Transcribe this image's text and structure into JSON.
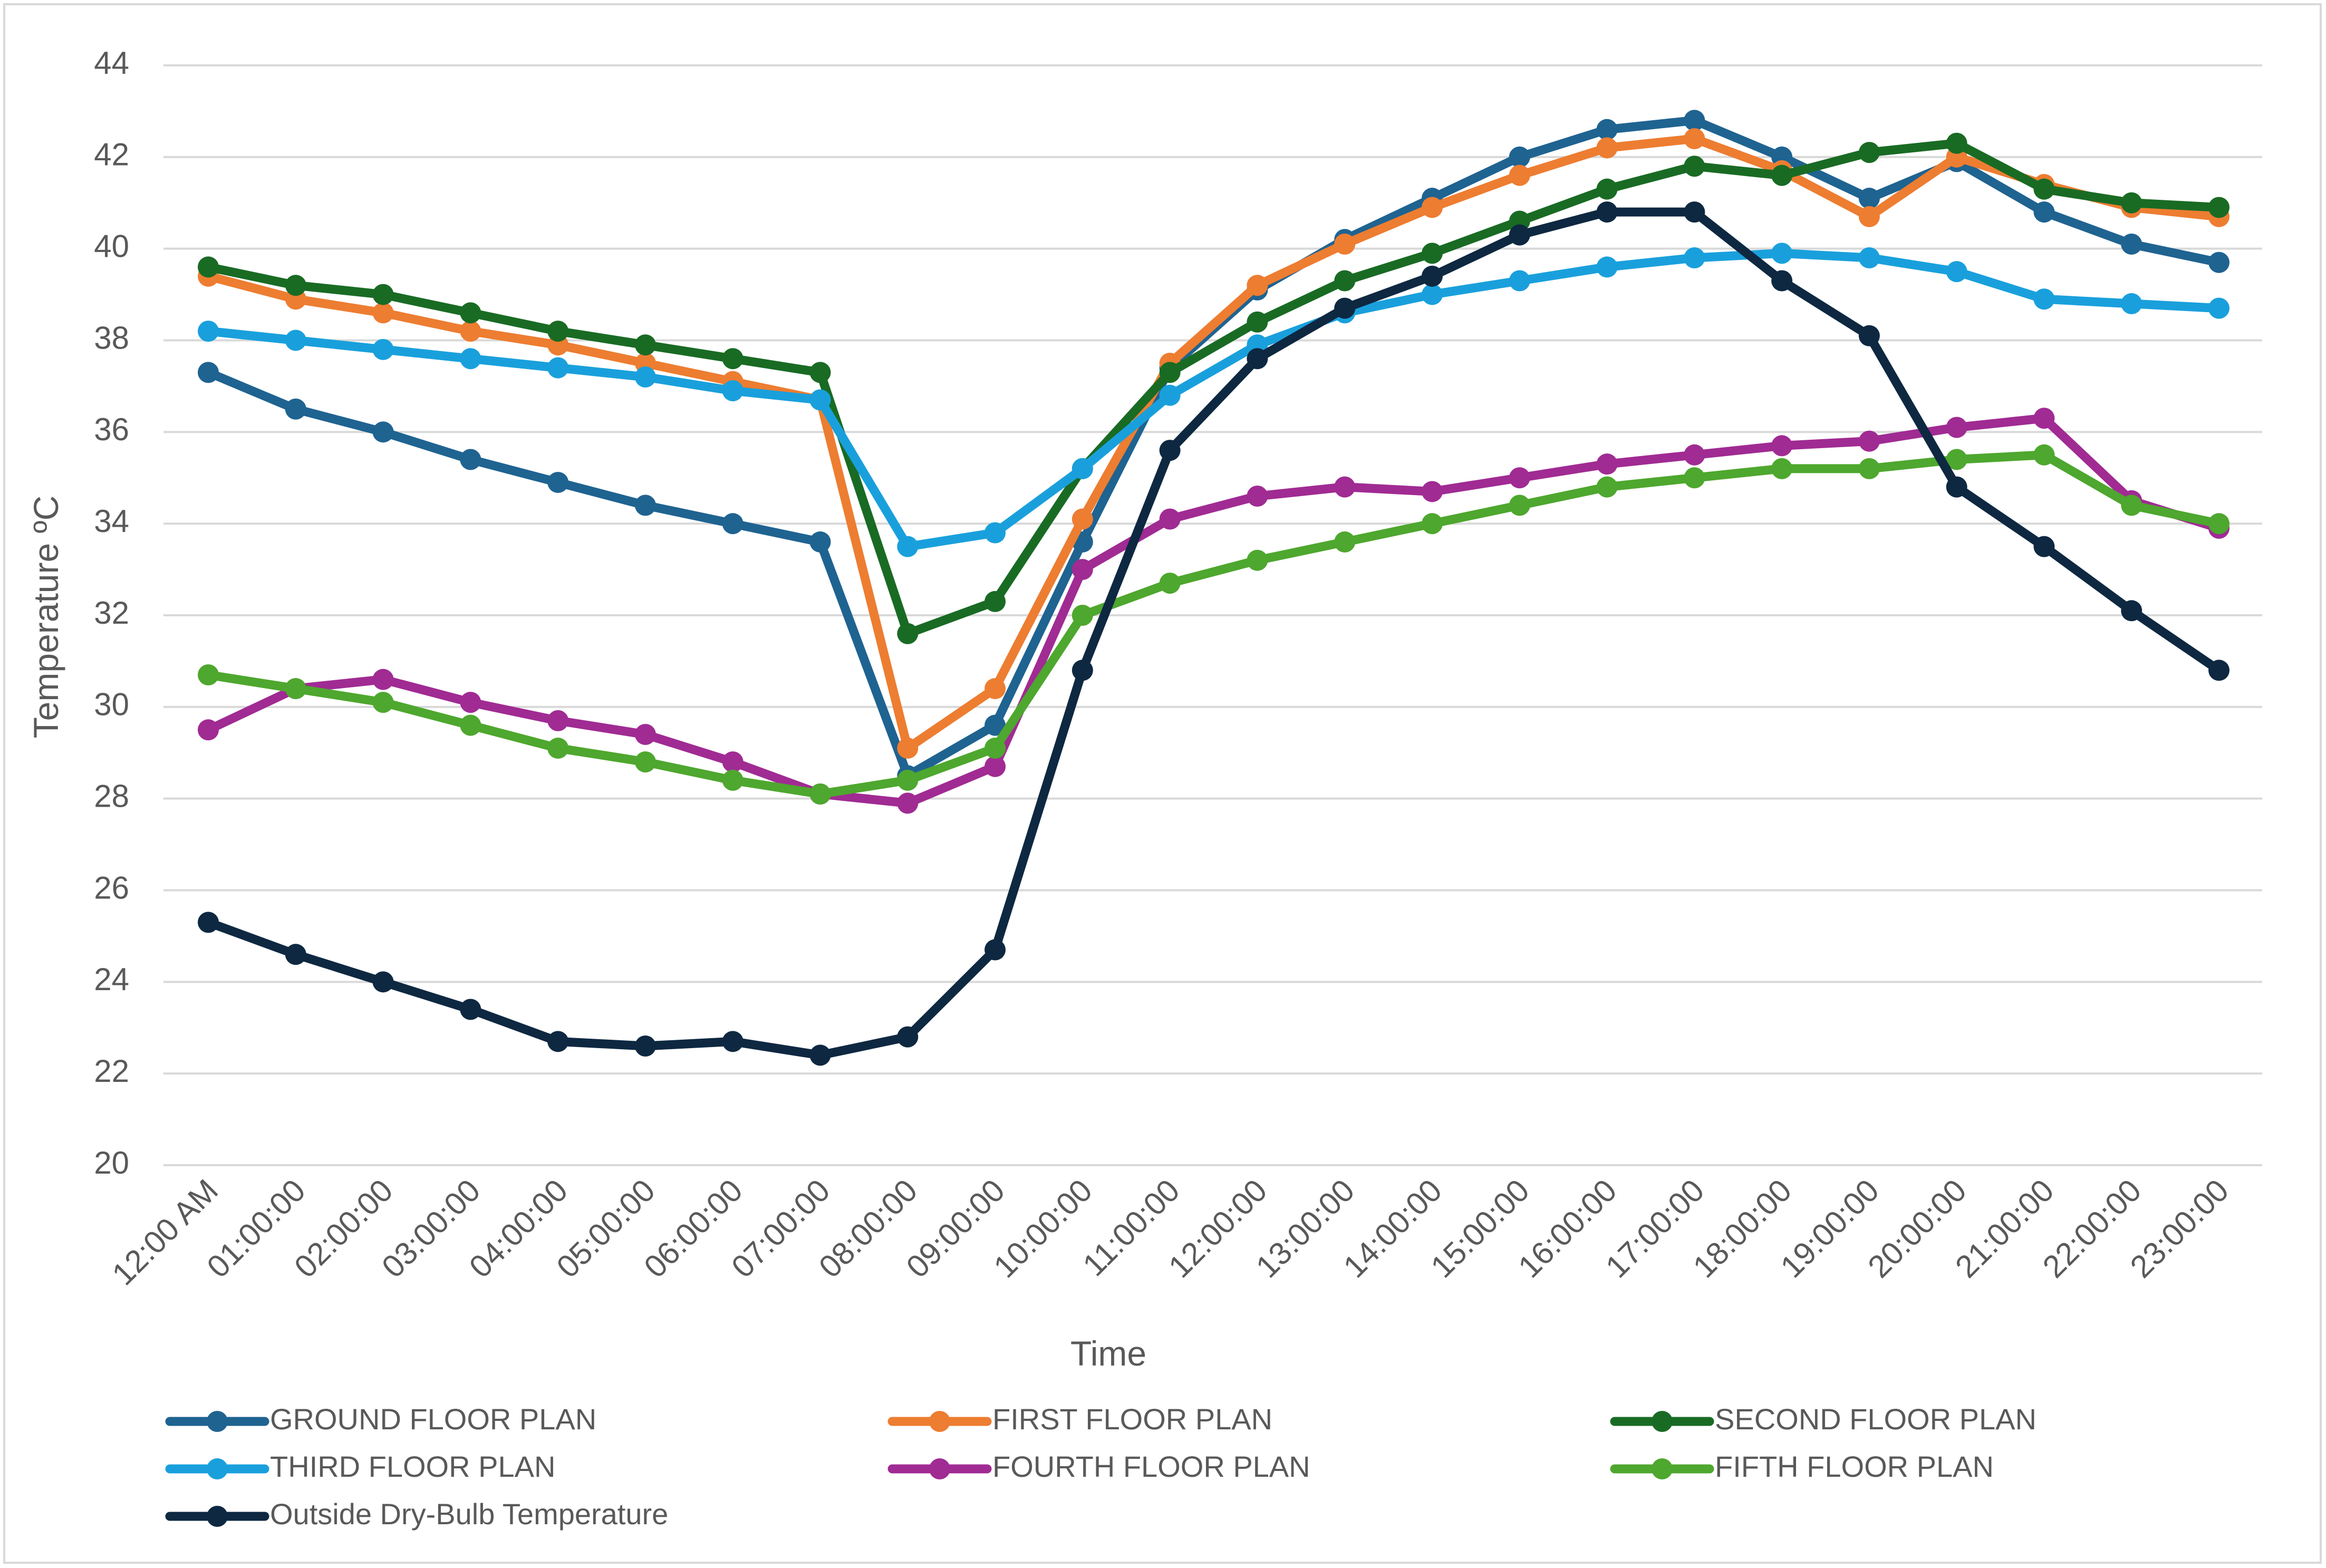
{
  "chart_data": {
    "type": "line",
    "title": "",
    "xlabel": "Time",
    "ylabel": "Temperature ºC",
    "ylim": [
      20,
      44
    ],
    "ytick_step": 2,
    "grid": true,
    "legend_position": "bottom",
    "categories": [
      "12:00 AM",
      "01:00:00",
      "02:00:00",
      "03:00:00",
      "04:00:00",
      "05:00:00",
      "06:00:00",
      "07:00:00",
      "08:00:00",
      "09:00:00",
      "10:00:00",
      "11:00:00",
      "12:00:00",
      "13:00:00",
      "14:00:00",
      "15:00:00",
      "16:00:00",
      "17:00:00",
      "18:00:00",
      "19:00:00",
      "20:00:00",
      "21:00:00",
      "22:00:00",
      "23:00:00"
    ],
    "series": [
      {
        "name": "GROUND FLOOR PLAN",
        "color": "#1f6391",
        "values": [
          37.3,
          36.5,
          36.0,
          35.4,
          34.9,
          34.4,
          34.0,
          33.6,
          28.5,
          29.6,
          33.6,
          37.4,
          39.1,
          40.2,
          41.1,
          42.0,
          42.6,
          42.8,
          42.0,
          41.1,
          41.9,
          40.8,
          40.1,
          39.7
        ]
      },
      {
        "name": "FIRST FLOOR PLAN",
        "color": "#ed7d31",
        "values": [
          39.4,
          38.9,
          38.6,
          38.2,
          37.9,
          37.5,
          37.1,
          36.7,
          29.1,
          30.4,
          34.1,
          37.5,
          39.2,
          40.1,
          40.9,
          41.6,
          42.2,
          42.4,
          41.7,
          40.7,
          42.0,
          41.4,
          40.9,
          40.7
        ]
      },
      {
        "name": "SECOND FLOOR PLAN",
        "color": "#196b24",
        "values": [
          39.6,
          39.2,
          39.0,
          38.6,
          38.2,
          37.9,
          37.6,
          37.3,
          31.6,
          32.3,
          35.2,
          37.3,
          38.4,
          39.3,
          39.9,
          40.6,
          41.3,
          41.8,
          41.6,
          42.1,
          42.3,
          41.3,
          41.0,
          40.9
        ]
      },
      {
        "name": "THIRD FLOOR PLAN",
        "color": "#19a0dc",
        "values": [
          38.2,
          38.0,
          37.8,
          37.6,
          37.4,
          37.2,
          36.9,
          36.7,
          33.5,
          33.8,
          35.2,
          36.8,
          37.9,
          38.6,
          39.0,
          39.3,
          39.6,
          39.8,
          39.9,
          39.8,
          39.5,
          38.9,
          38.8,
          38.7
        ]
      },
      {
        "name": "FOURTH FLOOR PLAN",
        "color": "#a02b93",
        "values": [
          29.5,
          30.4,
          30.6,
          30.1,
          29.7,
          29.4,
          28.8,
          28.1,
          27.9,
          28.7,
          33.0,
          34.1,
          34.6,
          34.8,
          34.7,
          35.0,
          35.3,
          35.5,
          35.7,
          35.8,
          36.1,
          36.3,
          34.5,
          33.9
        ]
      },
      {
        "name": "FIFTH FLOOR PLAN",
        "color": "#4ea72e",
        "values": [
          30.7,
          30.4,
          30.1,
          29.6,
          29.1,
          28.8,
          28.4,
          28.1,
          28.4,
          29.1,
          32.0,
          32.7,
          33.2,
          33.6,
          34.0,
          34.4,
          34.8,
          35.0,
          35.2,
          35.2,
          35.4,
          35.5,
          34.4,
          34.0
        ]
      },
      {
        "name": "Outside Dry-Bulb Temperature",
        "color": "#0e2841",
        "values": [
          25.3,
          24.6,
          24.0,
          23.4,
          22.7,
          22.6,
          22.7,
          22.4,
          22.8,
          24.7,
          30.8,
          35.6,
          37.6,
          38.7,
          39.4,
          40.3,
          40.8,
          40.8,
          39.3,
          38.1,
          34.8,
          33.5,
          32.1,
          30.8
        ]
      }
    ]
  }
}
